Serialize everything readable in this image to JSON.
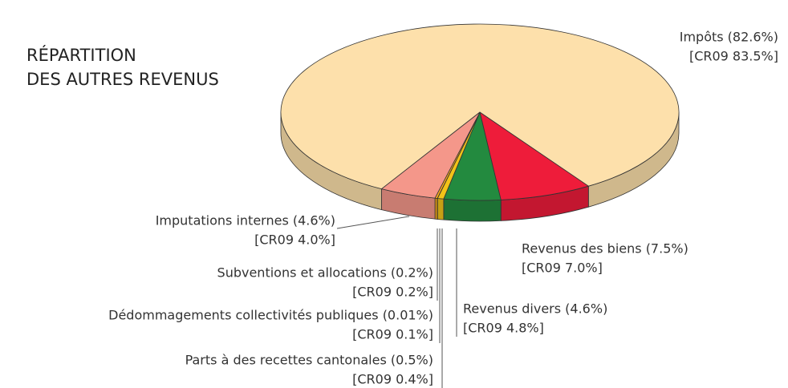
{
  "chart_data": {
    "type": "pie3d",
    "title_lines": [
      "RÉPARTITION",
      "DES AUTRES REVENUS"
    ],
    "labels": [
      "Impôts (82.6%)",
      "Revenus des biens (7.5%)",
      "Revenus divers (4.6%)",
      "Parts à des recettes cantonales (0.5%)",
      "Dédommagements collectivités publiques (0.01%)",
      "Subventions et allocations (0.2%)",
      "Imputations internes (4.6%)"
    ],
    "values": [
      82.6,
      7.5,
      4.6,
      0.5,
      0.01,
      0.2,
      4.6
    ],
    "cr09_labels": [
      "[CR09 83.5%]",
      "[CR09 7.0%]",
      "[CR09 4.8%]",
      "[CR09 0.4%]",
      "[CR09 0.1%]",
      "[CR09 0.2%]",
      "[CR09 4.0%]"
    ],
    "cr09_values": [
      83.5,
      7.0,
      4.8,
      0.4,
      0.1,
      0.2,
      4.0
    ],
    "colors": [
      "#fde0ab",
      "#ee1c3a",
      "#238a3f",
      "#f2c318",
      "#f5b800",
      "#f7a81b",
      "#f4978a"
    ]
  }
}
